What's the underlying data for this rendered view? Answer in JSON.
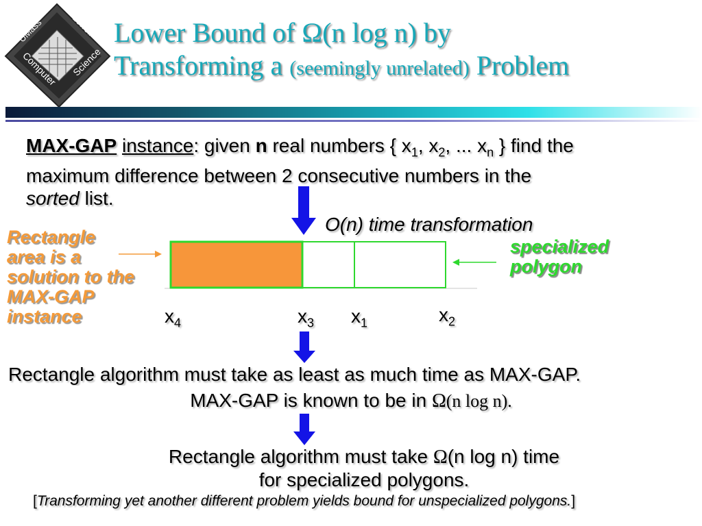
{
  "logo": {
    "top": "UMass",
    "right": "Lowell",
    "left": "Computer",
    "bottom": "Science"
  },
  "title": {
    "line1_prefix": "Lower Bound of",
    "omega": "Ω",
    "line1_suffix": "(n log n) by",
    "line2_prefix": "Transforming a",
    "line2_paren": "(seemingly unrelated)",
    "line2_suffix": "Problem"
  },
  "problem": {
    "name": "MAX-GAP",
    "instance": "instance",
    "given": ": given",
    "n": "n",
    "real_numbers": "real numbers { x",
    "sub1": "1",
    "comma1": ", x",
    "sub2": "2",
    "dots": ", ... x",
    "subn": "n",
    "close": "} find the",
    "line2": "maximum difference between 2 consecutive numbers in the",
    "sorted": "sorted",
    "list": "list."
  },
  "transformation": "O(n) time transformation",
  "left_note": [
    "Rectangle",
    "area is a",
    "solution to the",
    "MAX-GAP",
    "instance"
  ],
  "right_note": [
    "specialized",
    "polygon"
  ],
  "points": [
    {
      "base": "x",
      "sub": "4"
    },
    {
      "base": "x",
      "sub": "3"
    },
    {
      "base": "x",
      "sub": "1"
    },
    {
      "base": "x",
      "sub": "2"
    }
  ],
  "conclusion": {
    "line1": "Rectangle algorithm must take as least as much time as MAX-GAP.",
    "line2_prefix": "MAX-GAP is known to be in",
    "omega": "Ω",
    "line2_suffix": "(n log n)."
  },
  "final": {
    "line1_prefix": "Rectangle algorithm must take",
    "omega": "Ω",
    "line1_suffix": "(n log n) time",
    "line2": "for specialized polygons."
  },
  "footnote": {
    "open": "[",
    "text": "Transforming yet another different problem yields bound for unspecialized polygons.",
    "close": "]"
  },
  "colors": {
    "title": "#18a8b8",
    "orange_fill": "#f7963a",
    "green_outline": "#2ed82e",
    "arrow_blue": "#1414e6"
  }
}
